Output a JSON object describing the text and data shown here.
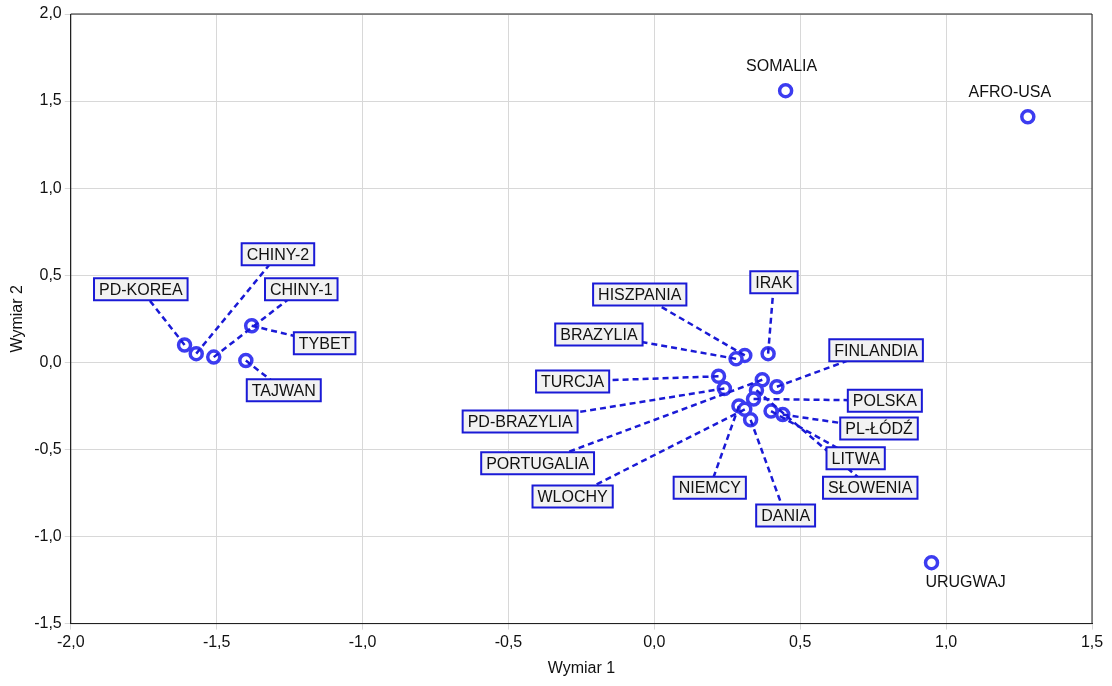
{
  "chart_data": {
    "type": "scatter",
    "xlabel": "Wymiar 1",
    "ylabel": "Wymiar 2",
    "x": [
      0.45,
      1.28,
      0.95,
      -1.61,
      -1.57,
      -1.51,
      -1.38,
      -1.4,
      0.31,
      0.28,
      0.39,
      0.22,
      0.24,
      0.42,
      0.37,
      0.35,
      0.34,
      0.29,
      0.31,
      0.4,
      0.44,
      0.33
    ],
    "series": [
      {
        "color": "#3c3cf0",
        "values": [
          1.56,
          1.41,
          -1.15,
          0.1,
          0.05,
          0.03,
          0.21,
          0.01,
          0.04,
          0.02,
          0.05,
          -0.08,
          -0.15,
          -0.14,
          -0.1,
          -0.16,
          -0.21,
          -0.25,
          -0.27,
          -0.28,
          -0.3,
          -0.33
        ]
      }
    ],
    "annotations": [
      {
        "text": "SOMALIA",
        "x": 0.45,
        "y": 1.56
      },
      {
        "text": "AFRO-USA",
        "x": 1.28,
        "y": 1.41
      },
      {
        "text": "URUGWAJ",
        "x": 0.95,
        "y": -1.15
      },
      {
        "text": "PD-KOREA",
        "x": -1.61,
        "y": 0.1
      },
      {
        "text": "CHINY-2",
        "x": -1.57,
        "y": 0.05
      },
      {
        "text": "CHINY-1",
        "x": -1.51,
        "y": 0.03
      },
      {
        "text": "TYBET",
        "x": -1.38,
        "y": 0.21
      },
      {
        "text": "TAJWAN",
        "x": -1.4,
        "y": 0.01
      },
      {
        "text": "HISZPANIA",
        "x": 0.31,
        "y": 0.04
      },
      {
        "text": "BRAZYLIA",
        "x": 0.28,
        "y": 0.02
      },
      {
        "text": "IRAK",
        "x": 0.39,
        "y": 0.05
      },
      {
        "text": "TURCJA",
        "x": 0.22,
        "y": -0.08
      },
      {
        "text": "PD-BRAZYLIA",
        "x": 0.24,
        "y": -0.15
      },
      {
        "text": "FINLANDIA",
        "x": 0.42,
        "y": -0.14
      },
      {
        "text": "PORTUGALIA",
        "x": 0.37,
        "y": -0.1
      },
      {
        "text": "SŁOWENIA",
        "x": 0.35,
        "y": -0.16
      },
      {
        "text": "POLSKA",
        "x": 0.34,
        "y": -0.21
      },
      {
        "text": "NIEMCY",
        "x": 0.29,
        "y": -0.25
      },
      {
        "text": "WLOCHY",
        "x": 0.31,
        "y": -0.27
      },
      {
        "text": "LITWA",
        "x": 0.4,
        "y": -0.28
      },
      {
        "text": "PL-ŁÓDŹ",
        "x": 0.44,
        "y": -0.3
      },
      {
        "text": "DANIA",
        "x": 0.33,
        "y": -0.33
      }
    ],
    "xlim": [
      -2.0,
      1.5
    ],
    "ylim": [
      -1.5,
      2.0
    ],
    "xticks": [
      {
        "value": -2.0,
        "label": "-2,0"
      },
      {
        "value": -1.5,
        "label": "-1,5"
      },
      {
        "value": -1.0,
        "label": "-1,0"
      },
      {
        "value": -0.5,
        "label": "-0,5"
      },
      {
        "value": 0.0,
        "label": "0,0"
      },
      {
        "value": 0.5,
        "label": "0,5"
      },
      {
        "value": 1.0,
        "label": "1,0"
      },
      {
        "value": 1.5,
        "label": "1,5"
      }
    ],
    "yticks": [
      {
        "value": -1.5,
        "label": "-1,5"
      },
      {
        "value": -1.0,
        "label": "-1,0"
      },
      {
        "value": -0.5,
        "label": "-0,5"
      },
      {
        "value": 0.0,
        "label": "0,0"
      },
      {
        "value": 0.5,
        "label": "0,5"
      },
      {
        "value": 1.0,
        "label": "1,0"
      },
      {
        "value": 1.5,
        "label": "1,5"
      },
      {
        "value": 2.0,
        "label": "2,0"
      }
    ],
    "grid": true,
    "legend": false,
    "marker": "circle"
  }
}
